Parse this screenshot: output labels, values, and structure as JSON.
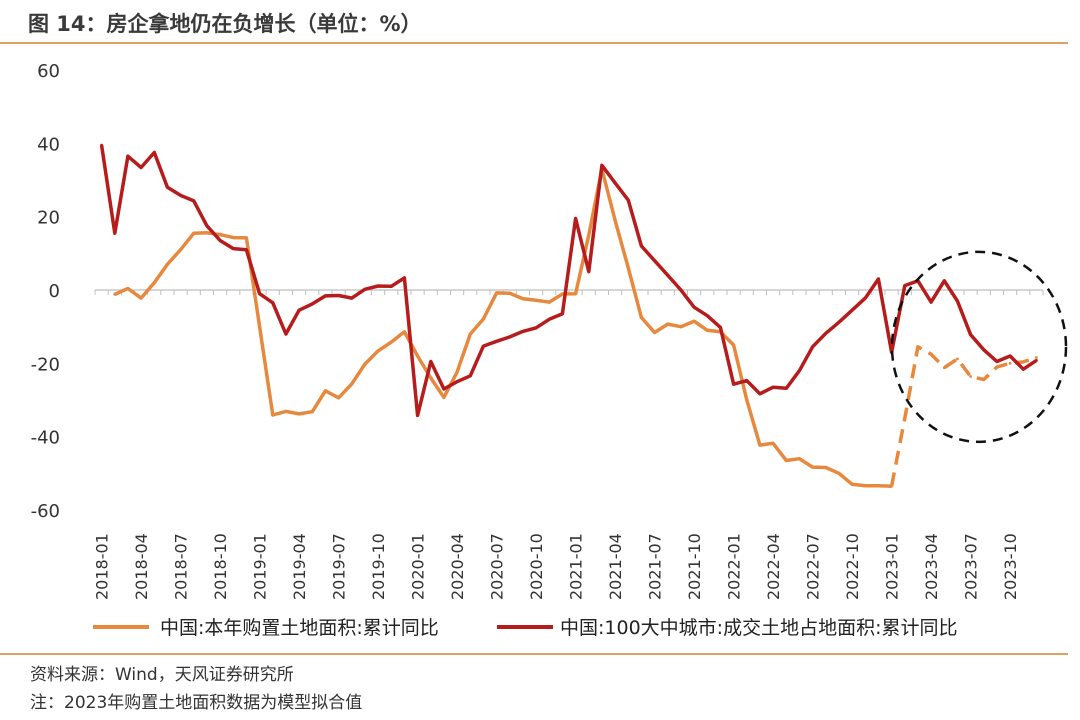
{
  "header": {
    "title": "图 14：房企拿地仍在负增长（单位：%）"
  },
  "footer": {
    "source": "资料来源：Wind，天风证券研究所",
    "note": "注：2023年购置土地面积数据为模型拟合值"
  },
  "colors": {
    "orange": "#e6893e",
    "darkred": "#b71c1c",
    "axis": "#bfbfbf",
    "circle": "#111111"
  },
  "chart_data": {
    "type": "line",
    "title": "房企拿地仍在负增长（单位：%）",
    "xlabel": "",
    "ylabel": "",
    "ylim": [
      -60,
      60
    ],
    "yticks": [
      "60",
      "40",
      "20",
      "0",
      "-20",
      "-40",
      "-60"
    ],
    "ytick_values": [
      60,
      40,
      20,
      0,
      -20,
      -40,
      -60
    ],
    "x_start": "2018-01",
    "x_end": "2023-12",
    "xtick_labels": [
      "2018-01",
      "2018-04",
      "2018-07",
      "2018-10",
      "2019-01",
      "2019-04",
      "2019-07",
      "2019-10",
      "2020-01",
      "2020-04",
      "2020-07",
      "2020-10",
      "2021-01",
      "2021-04",
      "2021-07",
      "2021-10",
      "2022-01",
      "2022-04",
      "2022-07",
      "2022-10",
      "2023-01",
      "2023-04",
      "2023-07",
      "2023-10"
    ],
    "series": [
      {
        "name": "中国:本年购置土地面积:累计同比",
        "color": "#e6893e",
        "dashed_from": "2023-01",
        "points": [
          [
            "2018-02",
            -1.2
          ],
          [
            "2018-03",
            0.4
          ],
          [
            "2018-04",
            -2.2
          ],
          [
            "2018-05",
            2.0
          ],
          [
            "2018-06",
            7.0
          ],
          [
            "2018-07",
            11.0
          ],
          [
            "2018-08",
            15.5
          ],
          [
            "2018-09",
            15.6
          ],
          [
            "2018-10",
            15.1
          ],
          [
            "2018-11",
            14.3
          ],
          [
            "2018-12",
            14.2
          ],
          [
            "2019-01",
            -10.0
          ],
          [
            "2019-02",
            -34.1
          ],
          [
            "2019-03",
            -33.1
          ],
          [
            "2019-04",
            -33.8
          ],
          [
            "2019-05",
            -33.2
          ],
          [
            "2019-06",
            -27.5
          ],
          [
            "2019-07",
            -29.4
          ],
          [
            "2019-08",
            -25.6
          ],
          [
            "2019-09",
            -20.2
          ],
          [
            "2019-10",
            -16.6
          ],
          [
            "2019-11",
            -14.2
          ],
          [
            "2019-12",
            -11.4
          ],
          [
            "2020-01",
            -18.0
          ],
          [
            "2020-02",
            -24.0
          ],
          [
            "2020-03",
            -29.3
          ],
          [
            "2020-04",
            -22.4
          ],
          [
            "2020-05",
            -12.0
          ],
          [
            "2020-06",
            -7.9
          ],
          [
            "2020-07",
            -0.8
          ],
          [
            "2020-08",
            -0.9
          ],
          [
            "2020-09",
            -2.4
          ],
          [
            "2020-10",
            -2.8
          ],
          [
            "2020-11",
            -3.3
          ],
          [
            "2020-12",
            -1.1
          ],
          [
            "2021-01",
            -1.0
          ],
          [
            "2021-02",
            15.0
          ],
          [
            "2021-03",
            33.0
          ],
          [
            "2021-04",
            19.0
          ],
          [
            "2021-05",
            6.0
          ],
          [
            "2021-06",
            -7.5
          ],
          [
            "2021-07",
            -11.6
          ],
          [
            "2021-08",
            -9.3
          ],
          [
            "2021-09",
            -10.0
          ],
          [
            "2021-10",
            -8.5
          ],
          [
            "2021-11",
            -11.0
          ],
          [
            "2021-12",
            -11.4
          ],
          [
            "2022-01",
            -15.0
          ],
          [
            "2022-02",
            -30.0
          ],
          [
            "2022-03",
            -42.3
          ],
          [
            "2022-04",
            -41.8
          ],
          [
            "2022-05",
            -46.5
          ],
          [
            "2022-06",
            -46.0
          ],
          [
            "2022-07",
            -48.3
          ],
          [
            "2022-08",
            -48.4
          ],
          [
            "2022-09",
            -50.0
          ],
          [
            "2022-10",
            -53.0
          ],
          [
            "2022-11",
            -53.4
          ],
          [
            "2022-12",
            -53.4
          ],
          [
            "2023-01",
            -53.5
          ],
          [
            "2023-02",
            -35.0
          ],
          [
            "2023-03",
            -15.5
          ],
          [
            "2023-04",
            -17.5
          ],
          [
            "2023-05",
            -21.2
          ],
          [
            "2023-06",
            -18.8
          ],
          [
            "2023-07",
            -23.6
          ],
          [
            "2023-08",
            -24.4
          ],
          [
            "2023-09",
            -21.0
          ],
          [
            "2023-10",
            -20.0
          ],
          [
            "2023-11",
            -19.6
          ],
          [
            "2023-12",
            -18.4
          ]
        ]
      },
      {
        "name": "中国:100大中城市:成交土地占地面积:累计同比",
        "color": "#b71c1c",
        "points": [
          [
            "2018-01",
            39.5
          ],
          [
            "2018-02",
            15.5
          ],
          [
            "2018-03",
            36.5
          ],
          [
            "2018-04",
            33.4
          ],
          [
            "2018-05",
            37.5
          ],
          [
            "2018-06",
            28.0
          ],
          [
            "2018-07",
            25.8
          ],
          [
            "2018-08",
            24.3
          ],
          [
            "2018-09",
            17.5
          ],
          [
            "2018-10",
            13.5
          ],
          [
            "2018-11",
            11.3
          ],
          [
            "2018-12",
            11.0
          ],
          [
            "2019-01",
            -1.0
          ],
          [
            "2019-02",
            -3.5
          ],
          [
            "2019-03",
            -12.0
          ],
          [
            "2019-04",
            -5.5
          ],
          [
            "2019-05",
            -3.8
          ],
          [
            "2019-06",
            -1.6
          ],
          [
            "2019-07",
            -1.5
          ],
          [
            "2019-08",
            -2.2
          ],
          [
            "2019-09",
            0.2
          ],
          [
            "2019-10",
            1.1
          ],
          [
            "2019-11",
            1.0
          ],
          [
            "2019-12",
            3.3
          ],
          [
            "2020-01",
            -34.2
          ],
          [
            "2020-02",
            -19.5
          ],
          [
            "2020-03",
            -27.0
          ],
          [
            "2020-04",
            -25.0
          ],
          [
            "2020-05",
            -23.4
          ],
          [
            "2020-06",
            -15.3
          ],
          [
            "2020-07",
            -14.0
          ],
          [
            "2020-08",
            -12.8
          ],
          [
            "2020-09",
            -11.3
          ],
          [
            "2020-10",
            -10.3
          ],
          [
            "2020-11",
            -8.0
          ],
          [
            "2020-12",
            -6.5
          ],
          [
            "2021-01",
            19.5
          ],
          [
            "2021-02",
            5.0
          ],
          [
            "2021-03",
            34.0
          ],
          [
            "2021-04",
            29.2
          ],
          [
            "2021-05",
            24.5
          ],
          [
            "2021-06",
            12.0
          ],
          [
            "2021-07",
            8.0
          ],
          [
            "2021-08",
            4.0
          ],
          [
            "2021-09",
            0.0
          ],
          [
            "2021-10",
            -4.7
          ],
          [
            "2021-11",
            -7.0
          ],
          [
            "2021-12",
            -10.2
          ],
          [
            "2022-01",
            -25.7
          ],
          [
            "2022-02",
            -24.7
          ],
          [
            "2022-03",
            -28.3
          ],
          [
            "2022-04",
            -26.5
          ],
          [
            "2022-05",
            -26.8
          ],
          [
            "2022-06",
            -22.0
          ],
          [
            "2022-07",
            -15.5
          ],
          [
            "2022-08",
            -11.8
          ],
          [
            "2022-09",
            -8.8
          ],
          [
            "2022-10",
            -5.5
          ],
          [
            "2022-11",
            -2.2
          ],
          [
            "2022-12",
            3.0
          ],
          [
            "2023-01",
            -17.0
          ],
          [
            "2023-02",
            1.2
          ],
          [
            "2023-03",
            2.5
          ],
          [
            "2023-04",
            -3.3
          ],
          [
            "2023-05",
            2.5
          ],
          [
            "2023-06",
            -3.0
          ],
          [
            "2023-07",
            -12.2
          ],
          [
            "2023-08",
            -16.3
          ],
          [
            "2023-09",
            -19.5
          ],
          [
            "2023-10",
            -18.0
          ],
          [
            "2023-11",
            -21.6
          ],
          [
            "2023-12",
            -19.2
          ]
        ]
      }
    ],
    "annotation": {
      "type": "dashed-circle",
      "around": "2023 data"
    },
    "legend_position": "bottom"
  }
}
